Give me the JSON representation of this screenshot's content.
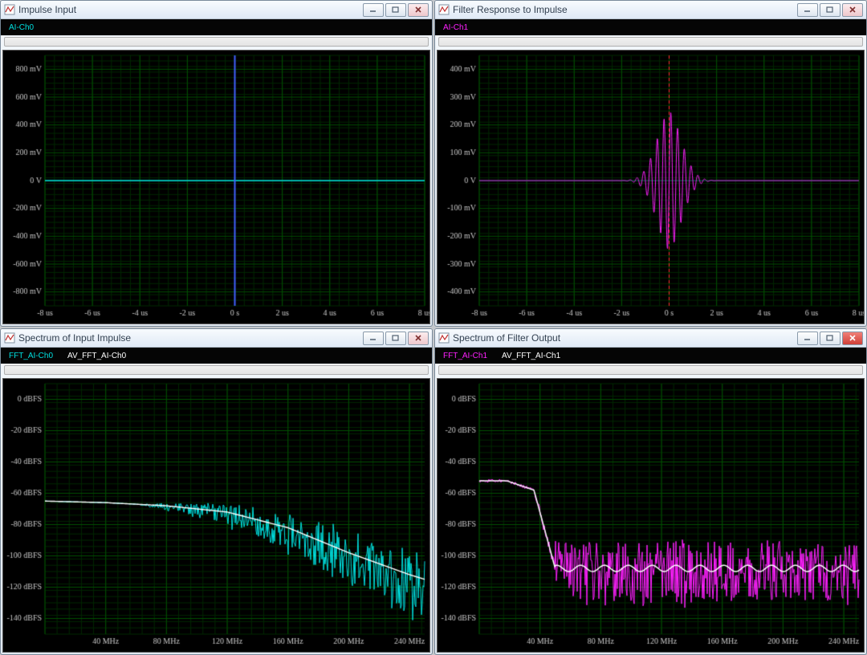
{
  "panels": [
    {
      "id": "p0",
      "title": "Impulse Input",
      "legends": [
        {
          "label": "AI-Ch0",
          "color": "#00e0e0"
        }
      ],
      "closeRed": false,
      "chart": {
        "type": "time",
        "bg": "#000000",
        "grid_major": "#005000",
        "grid_minor": "#002800",
        "axis_text": "#c8c8c8",
        "xaxis": {
          "min": -8,
          "max": 8,
          "step": 2,
          "unit": "us",
          "zero_label": "0 s"
        },
        "yaxis": {
          "min": -900,
          "max": 900,
          "ticks": [
            -800,
            -600,
            -400,
            -200,
            0,
            200,
            400,
            600,
            800
          ],
          "labels": [
            "-800 mV",
            "-600 mV",
            "-400 mV",
            "-200 mV",
            "0 V",
            "200 mV",
            "400 mV",
            "600 mV",
            "800 mV"
          ]
        },
        "cursor": {
          "x": 0,
          "color": "#ff3030"
        },
        "series": [
          {
            "subtype": "hline",
            "y": 0,
            "color": "#00e0e0",
            "width": 1.5
          },
          {
            "subtype": "impulse",
            "x": 0,
            "ymin": -900,
            "ymax": 900,
            "color": "#4060ff",
            "width": 2
          }
        ]
      }
    },
    {
      "id": "p1",
      "title": "Filter Response to Impulse",
      "legends": [
        {
          "label": "AI-Ch1",
          "color": "#ff20ff"
        }
      ],
      "closeRed": false,
      "chart": {
        "type": "time",
        "bg": "#000000",
        "grid_major": "#005000",
        "grid_minor": "#002800",
        "axis_text": "#c8c8c8",
        "xaxis": {
          "min": -8,
          "max": 8,
          "step": 2,
          "unit": "us",
          "zero_label": "0 s"
        },
        "yaxis": {
          "min": -450,
          "max": 450,
          "ticks": [
            -400,
            -300,
            -200,
            -100,
            0,
            100,
            200,
            300,
            400
          ],
          "labels": [
            "-400 mV",
            "-300 mV",
            "-200 mV",
            "-100 mV",
            "0 V",
            "100 mV",
            "200 mV",
            "300 mV",
            "400 mV"
          ]
        },
        "cursor": {
          "x": 0,
          "color": "#ff3030"
        },
        "series": [
          {
            "subtype": "ringing",
            "center_x": 0,
            "baseline": 0,
            "env_peak": 250,
            "decay": 0.8,
            "spread": 1.8,
            "freq": 22,
            "color": "#ff20ff",
            "baseline_color": "#004848"
          }
        ]
      }
    },
    {
      "id": "p2",
      "title": "Spectrum of Input Impulse",
      "legends": [
        {
          "label": "FFT_AI-Ch0",
          "color": "#00e0e0"
        },
        {
          "label": "AV_FFT_AI-Ch0",
          "color": "#ffffff"
        }
      ],
      "closeRed": false,
      "chart": {
        "type": "spectrum",
        "bg": "#000000",
        "grid_major": "#005000",
        "grid_minor": "#002800",
        "axis_text": "#c8c8c8",
        "xaxis": {
          "min": 0,
          "max": 250,
          "step": 40,
          "unit": "MHz",
          "first_tick": 40
        },
        "yaxis": {
          "min": -150,
          "max": 10,
          "ticks": [
            -140,
            -120,
            -100,
            -80,
            -60,
            -40,
            -20,
            0
          ],
          "labels": [
            "-140 dBFS",
            "-120 dBFS",
            "-100 dBFS",
            "-80 dBFS",
            "-60 dBFS",
            "-40 dBFS",
            "-20 dBFS",
            "0 dBFS"
          ]
        },
        "series": [
          {
            "subtype": "noisy_curve",
            "color": "#00e0e0",
            "avg_color": "#ffffff",
            "curve": [
              [
                0,
                -65
              ],
              [
                40,
                -66
              ],
              [
                80,
                -68
              ],
              [
                120,
                -72
              ],
              [
                160,
                -82
              ],
              [
                200,
                -98
              ],
              [
                240,
                -112
              ],
              [
                250,
                -115
              ]
            ],
            "noise_start": 60,
            "noise_max": 22
          }
        ]
      }
    },
    {
      "id": "p3",
      "title": "Spectrum of Filter Output",
      "legends": [
        {
          "label": "FFT_AI-Ch1",
          "color": "#ff20ff"
        },
        {
          "label": "AV_FFT_AI-Ch1",
          "color": "#ffffff"
        }
      ],
      "closeRed": true,
      "chart": {
        "type": "spectrum",
        "bg": "#000000",
        "grid_major": "#005000",
        "grid_minor": "#002800",
        "axis_text": "#c8c8c8",
        "xaxis": {
          "min": 0,
          "max": 250,
          "step": 40,
          "unit": "MHz",
          "first_tick": 40
        },
        "yaxis": {
          "min": -150,
          "max": 10,
          "ticks": [
            -140,
            -120,
            -100,
            -80,
            -60,
            -40,
            -20,
            0
          ],
          "labels": [
            "-140 dBFS",
            "-120 dBFS",
            "-100 dBFS",
            "-80 dBFS",
            "-60 dBFS",
            "-40 dBFS",
            "-20 dBFS",
            "0 dBFS"
          ]
        },
        "series": [
          {
            "subtype": "lowpass_noisy",
            "color": "#ff20ff",
            "avg_color": "#ffffff",
            "passband": [
              [
                0,
                -52
              ],
              [
                18,
                -52
              ],
              [
                36,
                -58
              ]
            ],
            "cutoff": 50,
            "stopband_level": -108,
            "stopband_noise": 20
          }
        ]
      }
    }
  ],
  "style": {
    "title_fontsize": 12,
    "axis_fontsize": 10
  }
}
